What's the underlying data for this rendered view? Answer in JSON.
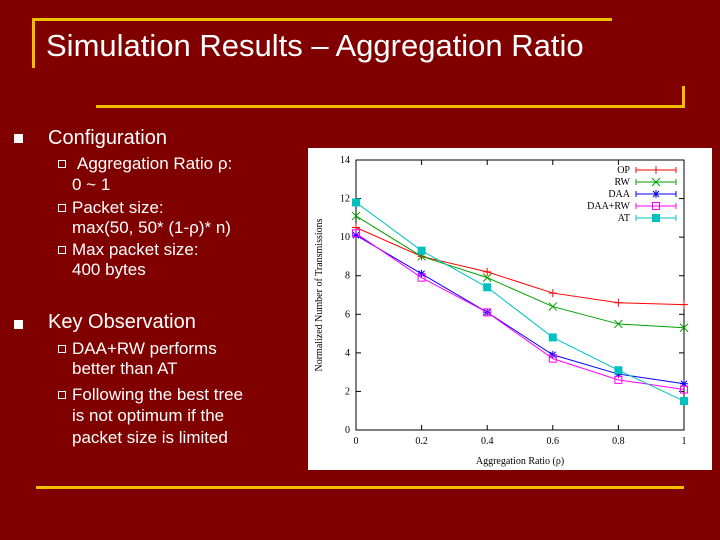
{
  "slide": {
    "title": "Simulation Results – Aggregation Ratio",
    "accent_color": "#f0c000",
    "background_color": "#800000"
  },
  "bullets": [
    {
      "text": "Configuration",
      "sub": [
        {
          "lines": [
            "Aggregation Ratio ρ:",
            "0 ~ 1"
          ]
        },
        {
          "lines": [
            "Packet size:",
            "max(50, 50* (1-ρ)* n)"
          ]
        },
        {
          "lines": [
            "Max packet size:",
            "400 bytes"
          ]
        }
      ]
    },
    {
      "text": "Key Observation",
      "sub": [
        {
          "lines": [
            "DAA+RW performs",
            "better than AT"
          ]
        },
        {
          "lines": [
            "Following the best tree",
            "is not optimum if the",
            "packet size is limited"
          ]
        }
      ]
    }
  ],
  "chart_data": {
    "type": "line",
    "xlabel": "Aggregation Ratio (ρ)",
    "ylabel": "Normalized Number of Transmissions",
    "x": [
      0,
      0.2,
      0.4,
      0.6,
      0.8,
      1
    ],
    "x_tick_labels": [
      "0",
      "0.2",
      "0.4",
      "0.6",
      "0.8",
      "1"
    ],
    "y_ticks": [
      0,
      2,
      4,
      6,
      8,
      10,
      12,
      14
    ],
    "xlim": [
      0,
      1
    ],
    "ylim": [
      0,
      14
    ],
    "legend_position": "top-right",
    "series": [
      {
        "name": "OP",
        "color": "#ff0000",
        "marker": "plus",
        "values": [
          10.5,
          9.0,
          8.2,
          7.1,
          6.6,
          6.5
        ]
      },
      {
        "name": "RW",
        "color": "#00a000",
        "marker": "x",
        "values": [
          11.1,
          9.0,
          7.9,
          6.4,
          5.5,
          5.3
        ]
      },
      {
        "name": "DAA",
        "color": "#0000ff",
        "marker": "star",
        "values": [
          10.1,
          8.1,
          6.1,
          3.9,
          2.9,
          2.4
        ]
      },
      {
        "name": "DAA+RW",
        "color": "#ff00ff",
        "marker": "open-square",
        "values": [
          10.2,
          7.9,
          6.1,
          3.7,
          2.6,
          2.1
        ]
      },
      {
        "name": "AT",
        "color": "#00c0c0",
        "marker": "filled-square",
        "values": [
          11.8,
          9.3,
          7.4,
          4.8,
          3.1,
          1.5
        ]
      }
    ]
  }
}
